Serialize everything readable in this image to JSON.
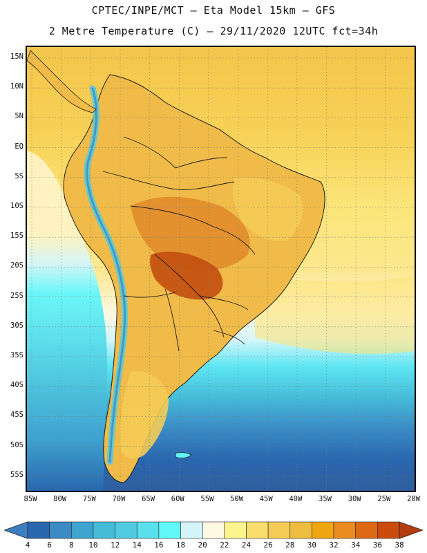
{
  "header": {
    "line1": "CPTEC/INPE/MCT —  Eta Model 15km — GFS",
    "line2": "2 Metre Temperature (C) — 29/11/2020 12UTC fct=34h"
  },
  "axes": {
    "lat_labels": [
      "15N",
      "10N",
      "5N",
      "EQ",
      "5S",
      "10S",
      "15S",
      "20S",
      "25S",
      "30S",
      "35S",
      "40S",
      "45S",
      "50S",
      "55S"
    ],
    "lon_labels": [
      "85W",
      "80W",
      "75W",
      "70W",
      "65W",
      "60W",
      "55W",
      "50W",
      "45W",
      "40W",
      "35W",
      "30W",
      "25W",
      "20W"
    ]
  },
  "legend": {
    "labels": [
      "4",
      "6",
      "8",
      "10",
      "12",
      "14",
      "16",
      "18",
      "20",
      "22",
      "24",
      "26",
      "28",
      "30",
      "32",
      "34",
      "36",
      "38"
    ],
    "colors": [
      "#3c7fc1",
      "#2a67ae",
      "#3b8bc5",
      "#3fa4d0",
      "#46bcd9",
      "#52cbe0",
      "#5ae0ec",
      "#62f7fb",
      "#d4f6fb",
      "#fdf9e2",
      "#fdf38f",
      "#f9de6d",
      "#f4cc55",
      "#eebd3f",
      "#efa50f",
      "#ea8b1f",
      "#de6914",
      "#ca4b0c",
      "#b43d10"
    ]
  },
  "colors": {
    "ocean_north": "#f5c84a",
    "ocean_south_deep": "#3565a6",
    "land_base": "#f0bb48"
  }
}
